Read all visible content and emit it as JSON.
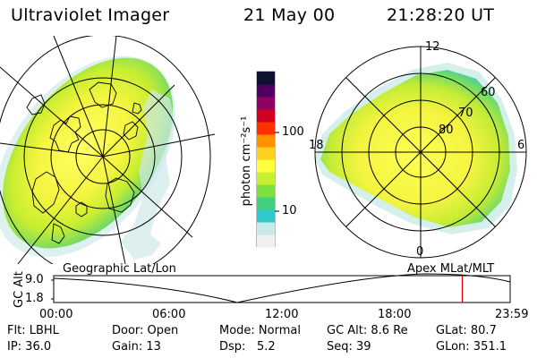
{
  "header": {
    "instrument": "Ultraviolet Imager",
    "date": "21 May 00",
    "time": "21:28:20 UT"
  },
  "polar_plot": {
    "top_label": "12",
    "left_label": "18",
    "right_label": "6",
    "bottom_label": "0",
    "ring_labels": [
      "60",
      "70",
      "80"
    ]
  },
  "colorbar": {
    "unit_label": "photon cm⁻²s⁻¹",
    "tick_100": "100",
    "tick_10": "10",
    "colors": [
      "#f0f0f0",
      "#c8e8ec",
      "#30c8c8",
      "#40d080",
      "#7ee040",
      "#c8f030",
      "#ffff40",
      "#ffd020",
      "#ff9000",
      "#ff3000",
      "#d00020",
      "#900060",
      "#500060",
      "#101030"
    ]
  },
  "altitude_strip": {
    "left_caption": "Geographic Lat/Lon",
    "right_caption": "Apex MLat/MLT",
    "axis_label": "GC Alt",
    "y_top": "9.0",
    "y_bottom": "1.8",
    "times": [
      "00:00",
      "06:00",
      "12:00",
      "18:00",
      "23:59"
    ],
    "marker_time": "21:28"
  },
  "footer": {
    "row1": {
      "filter": "Flt: LBHL",
      "door": "Door: Open",
      "mode": "Mode: Normal",
      "gc_alt": "GC Alt: 8.6 Re",
      "glat": "GLat:  80.7"
    },
    "row2": {
      "ip": "IP: 36.0",
      "gain": "Gain: 13",
      "dsp_label": "Dsp:",
      "dsp_value": "5.2",
      "seq": "Seq: 39",
      "glon": "GLon: 351.1"
    }
  }
}
